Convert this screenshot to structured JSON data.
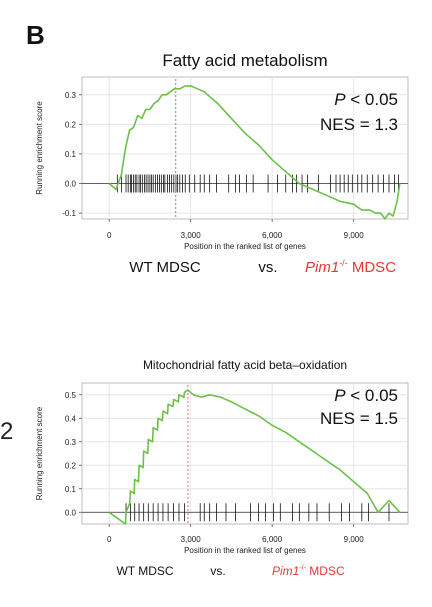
{
  "panel_label": "B",
  "stray_marks": [
    "2"
  ],
  "colors": {
    "curve": "#6cc04a",
    "peak_line": "#e5606b",
    "hits": "#111111",
    "grid": "#e6e6e6",
    "frame": "#bdbdbd",
    "pim_label": "#e53935"
  },
  "chart_data": [
    {
      "type": "line",
      "title": "Fatty acid metabolism",
      "xlabel": "Position in the ranked list of genes",
      "ylabel": "Running enrichment score",
      "xlim": [
        -1000,
        11000
      ],
      "ylim": [
        -0.12,
        0.36
      ],
      "xticks": [
        0,
        3000,
        6000,
        9000
      ],
      "xtick_labels": [
        "0",
        "3,000",
        "6,000",
        "9,000"
      ],
      "yticks": [
        -0.1,
        0.0,
        0.1,
        0.2,
        0.3
      ],
      "ytick_labels": [
        "-0.1",
        "0.0",
        "0.1",
        "0.2",
        "0.3"
      ],
      "grid": true,
      "stats": {
        "p_prefix": "P",
        "p_suffix": " < 0.05",
        "nes": "NES = 1.3"
      },
      "groups": {
        "left": "WT MDSC",
        "vs": "vs.",
        "right_italic": "Pim1",
        "right_sup": "-/-",
        "right_rest": " MDSC"
      },
      "peak_x": 2450,
      "series": [
        {
          "x": [
            0,
            250,
            450,
            600,
            750,
            900,
            1050,
            1200,
            1350,
            1500,
            1650,
            1800,
            1950,
            2100,
            2250,
            2400,
            2600,
            2800,
            3000,
            3250,
            3500,
            4000,
            4500,
            5000,
            5500,
            6000,
            6500,
            7000,
            7500,
            8000,
            8500,
            9000,
            9300,
            9600,
            9800,
            10000,
            10150,
            10300,
            10450,
            10600,
            10700
          ],
          "y": [
            0.0,
            -0.02,
            0.03,
            0.12,
            0.18,
            0.19,
            0.23,
            0.22,
            0.25,
            0.25,
            0.27,
            0.28,
            0.3,
            0.3,
            0.31,
            0.32,
            0.32,
            0.33,
            0.33,
            0.32,
            0.31,
            0.27,
            0.22,
            0.17,
            0.13,
            0.08,
            0.04,
            0.0,
            -0.02,
            -0.04,
            -0.06,
            -0.07,
            -0.09,
            -0.09,
            -0.1,
            -0.1,
            -0.12,
            -0.1,
            -0.11,
            -0.06,
            0.0
          ]
        }
      ],
      "hits": [
        300,
        450,
        620,
        700,
        780,
        820,
        900,
        960,
        1020,
        1100,
        1150,
        1220,
        1300,
        1360,
        1430,
        1500,
        1560,
        1620,
        1700,
        1780,
        1850,
        1920,
        2000,
        2050,
        2150,
        2220,
        2300,
        2380,
        2460,
        2520,
        2600,
        2700,
        2800,
        2950,
        3150,
        3350,
        3500,
        3700,
        3950,
        4400,
        4650,
        4800,
        5050,
        5300,
        5850,
        6200,
        6500,
        6750,
        6900,
        7100,
        7300,
        7700,
        8150,
        8350,
        8500,
        8650,
        8800,
        8950,
        9150,
        9300,
        9500,
        9700,
        9900,
        10100,
        10300,
        10500,
        10650
      ]
    },
    {
      "type": "line",
      "title": "Mitochondrial fatty acid beta–oxidation",
      "xlabel": "Position in the ranked list of genes",
      "ylabel": "Running enrichment score",
      "xlim": [
        -1000,
        11000
      ],
      "ylim": [
        -0.05,
        0.55
      ],
      "xticks": [
        0,
        3000,
        6000,
        9000
      ],
      "xtick_labels": [
        "0",
        "3,000",
        "6,000",
        "9,000"
      ],
      "yticks": [
        0.0,
        0.1,
        0.2,
        0.3,
        0.4,
        0.5
      ],
      "ytick_labels": [
        "0.0",
        "0.1",
        "0.2",
        "0.3",
        "0.4",
        "0.5"
      ],
      "grid": true,
      "stats": {
        "p_prefix": "P",
        "p_suffix": " < 0.05",
        "nes": "NES = 1.5"
      },
      "groups": {
        "left": "WT MDSC",
        "vs": "vs.",
        "right_italic": "Pim1",
        "right_sup": "-/-",
        "right_rest": " MDSC"
      },
      "peak_x": 2900,
      "series": [
        {
          "x": [
            0,
            600,
            620,
            760,
            780,
            920,
            940,
            1080,
            1100,
            1250,
            1270,
            1420,
            1440,
            1600,
            1620,
            1780,
            1800,
            1960,
            1980,
            2150,
            2170,
            2350,
            2370,
            2550,
            2570,
            2750,
            2770,
            2900,
            3100,
            3400,
            3700,
            4100,
            4500,
            5000,
            5500,
            6000,
            6500,
            7000,
            7500,
            8000,
            8500,
            9000,
            9500,
            9900,
            10300,
            10700
          ],
          "y": [
            0.0,
            -0.05,
            0.0,
            0.04,
            0.09,
            0.08,
            0.14,
            0.13,
            0.2,
            0.19,
            0.26,
            0.25,
            0.31,
            0.3,
            0.36,
            0.35,
            0.4,
            0.39,
            0.43,
            0.42,
            0.46,
            0.45,
            0.48,
            0.47,
            0.5,
            0.49,
            0.51,
            0.52,
            0.5,
            0.49,
            0.5,
            0.49,
            0.47,
            0.44,
            0.41,
            0.37,
            0.34,
            0.3,
            0.26,
            0.22,
            0.18,
            0.13,
            0.08,
            0.0,
            0.05,
            0.0
          ]
        }
      ],
      "hits": [
        620,
        780,
        940,
        1100,
        1270,
        1440,
        1620,
        1800,
        1980,
        2170,
        2370,
        2570,
        2770,
        3350,
        3500,
        3700,
        3950,
        4300,
        4650,
        5200,
        5500,
        5750,
        6050,
        6300,
        6750,
        7000,
        7350,
        7650,
        8100,
        8550,
        8850,
        9300,
        9550,
        10300
      ]
    }
  ]
}
